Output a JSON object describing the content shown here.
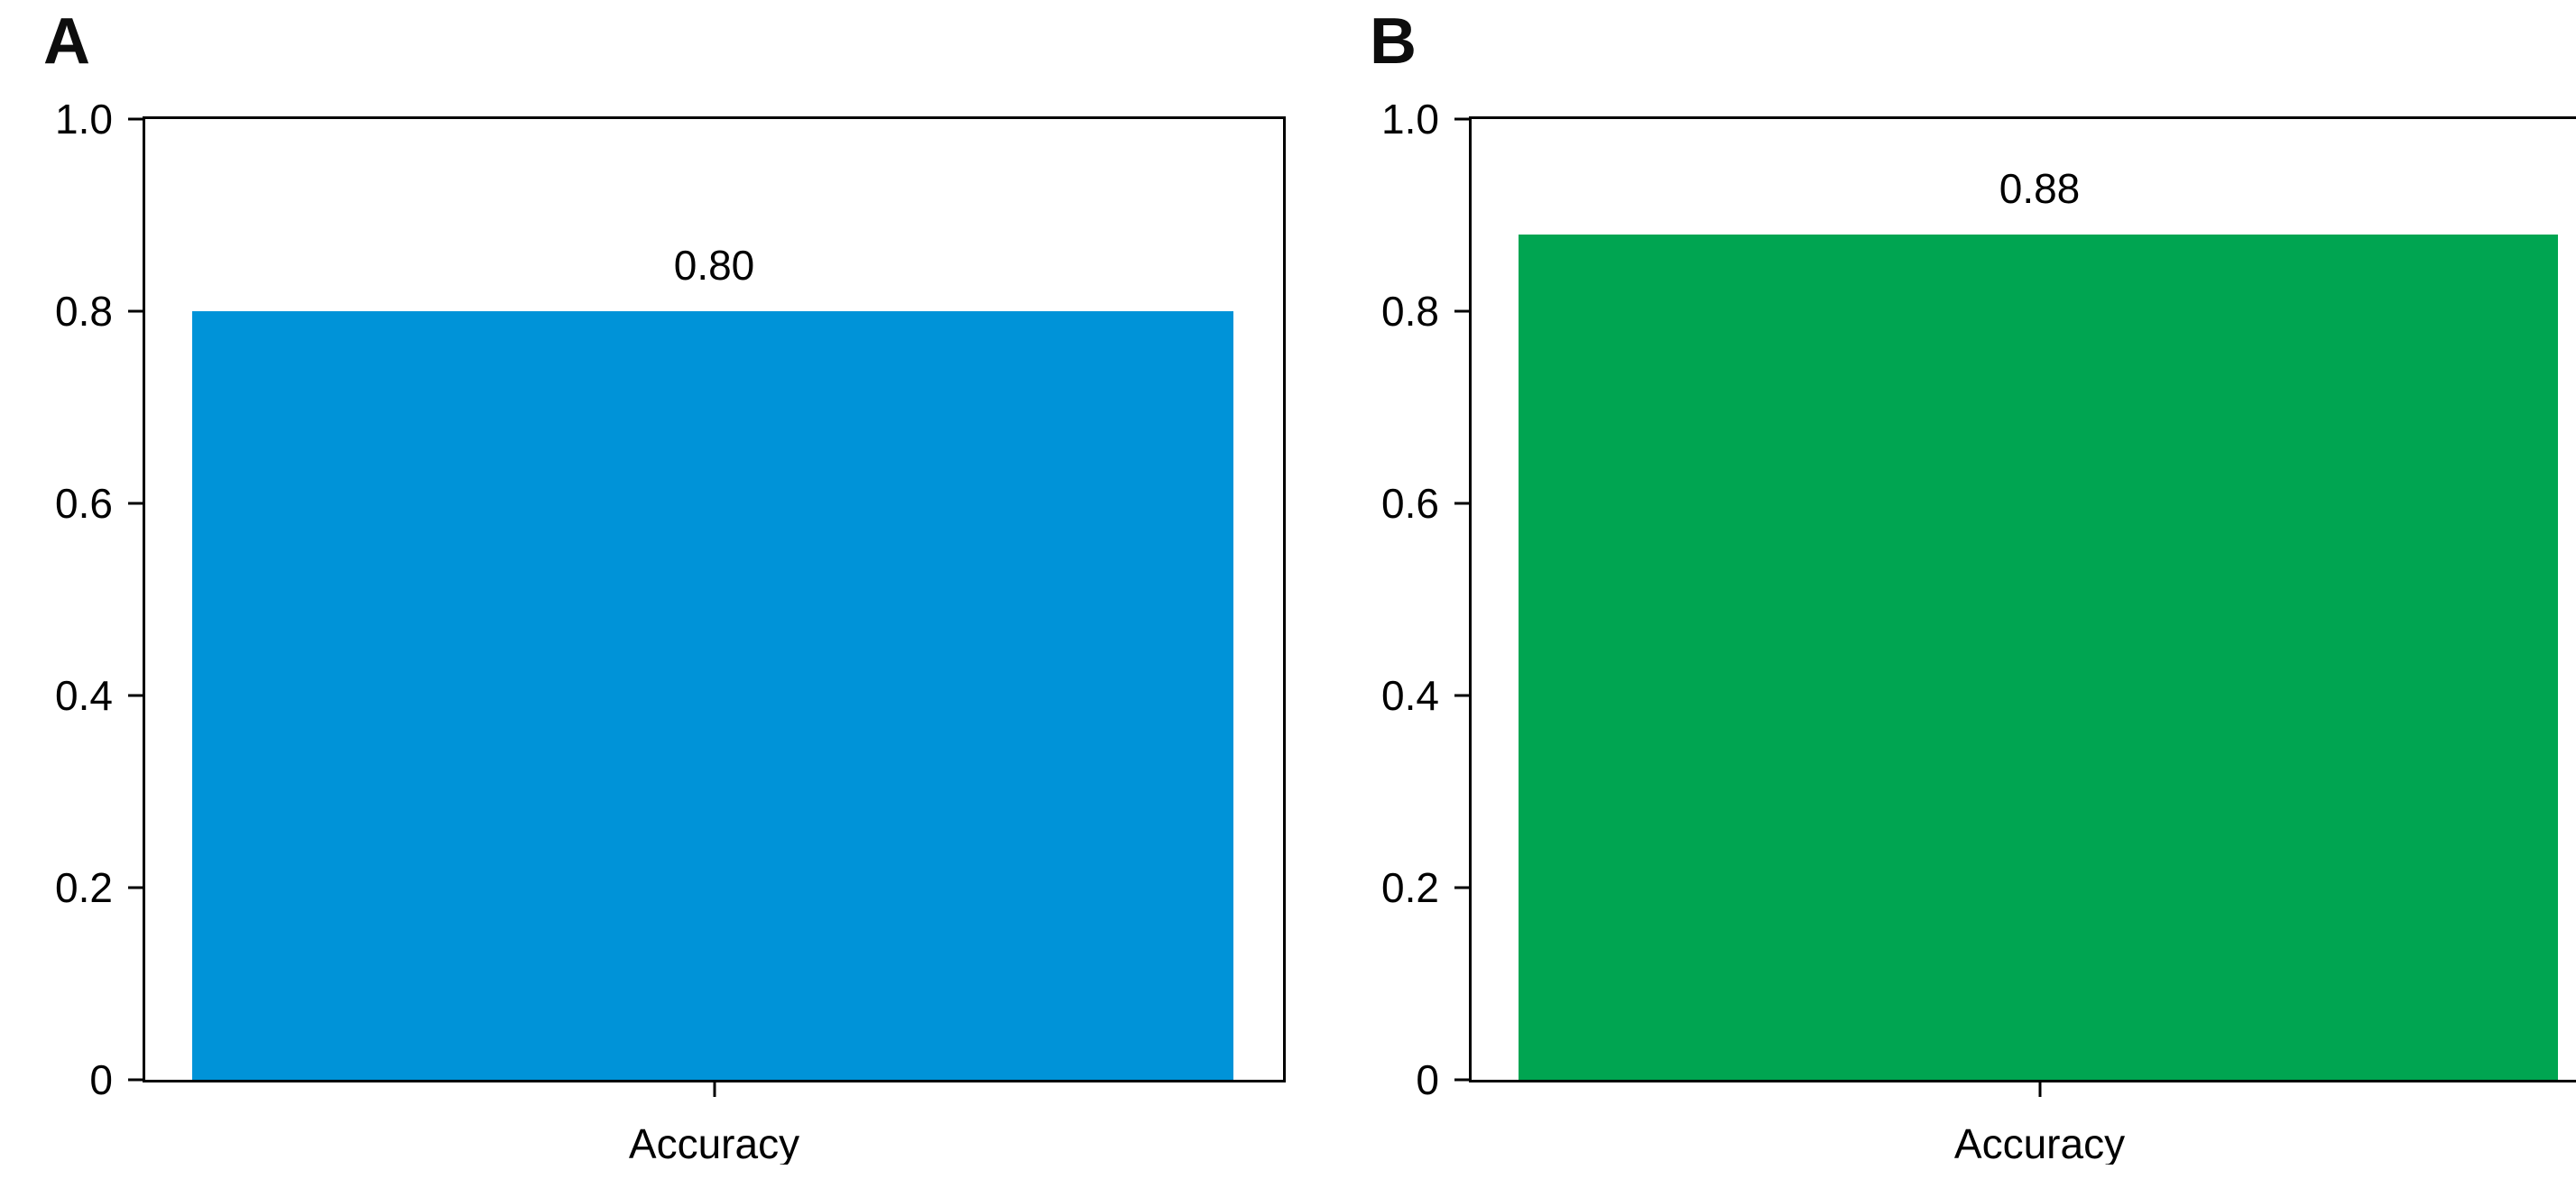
{
  "chart_data": [
    {
      "type": "bar",
      "panel_label": "A",
      "categories": [
        "Accuracy"
      ],
      "values": [
        0.8
      ],
      "bar_labels": [
        "0.80"
      ],
      "bar_color": "#0093d8",
      "xlabel": "",
      "ylabel": "",
      "ylim": [
        0,
        1.0
      ],
      "yticks": [
        {
          "value": 1.0,
          "label": "1.0"
        },
        {
          "value": 0.8,
          "label": "0.8"
        },
        {
          "value": 0.6,
          "label": "0.6"
        },
        {
          "value": 0.4,
          "label": "0.4"
        },
        {
          "value": 0.2,
          "label": "0.2"
        },
        {
          "value": 0,
          "label": "0"
        }
      ],
      "grid": false,
      "legend": "none",
      "box_frame": true
    },
    {
      "type": "bar",
      "panel_label": "B",
      "categories": [
        "Accuracy"
      ],
      "values": [
        0.88
      ],
      "bar_labels": [
        "0.88"
      ],
      "bar_color": "#00a551",
      "xlabel": "",
      "ylabel": "",
      "ylim": [
        0,
        1.0
      ],
      "yticks": [
        {
          "value": 1.0,
          "label": "1.0"
        },
        {
          "value": 0.8,
          "label": "0.8"
        },
        {
          "value": 0.6,
          "label": "0.6"
        },
        {
          "value": 0.4,
          "label": "0.4"
        },
        {
          "value": 0.2,
          "label": "0.2"
        },
        {
          "value": 0,
          "label": "0"
        }
      ],
      "grid": false,
      "legend": "none",
      "box_frame": true
    }
  ]
}
